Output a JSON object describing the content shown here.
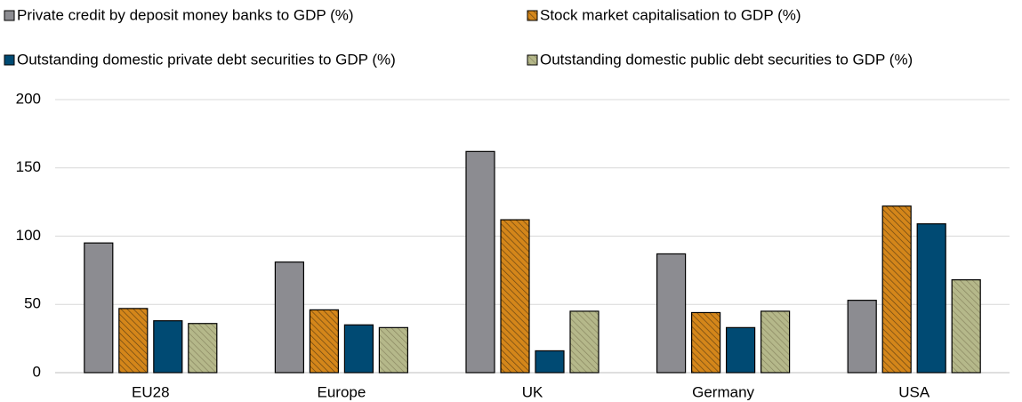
{
  "chart_data": {
    "type": "bar",
    "categories": [
      "EU28",
      "Europe",
      "UK",
      "Germany",
      "USA"
    ],
    "series": [
      {
        "name": "Private credit by deposit money banks to GDP (%)",
        "color": "#8c8c91",
        "hatched": false,
        "values": [
          95,
          81,
          162,
          87,
          53
        ]
      },
      {
        "name": "Stock market capitalisation to GDP (%)",
        "color": "#d4861a",
        "hatched": true,
        "values": [
          47,
          46,
          112,
          44,
          122
        ]
      },
      {
        "name": "Outstanding domestic private debt securities to GDP (%)",
        "color": "#004a73",
        "hatched": false,
        "values": [
          38,
          35,
          16,
          33,
          109
        ]
      },
      {
        "name": "Outstanding domestic public debt securities to GDP (%)",
        "color": "#b5b88a",
        "hatched": true,
        "values": [
          36,
          33,
          45,
          45,
          68
        ]
      }
    ],
    "ylim": [
      0,
      200
    ],
    "yticks": [
      0,
      50,
      100,
      150,
      200
    ],
    "grid": true
  }
}
